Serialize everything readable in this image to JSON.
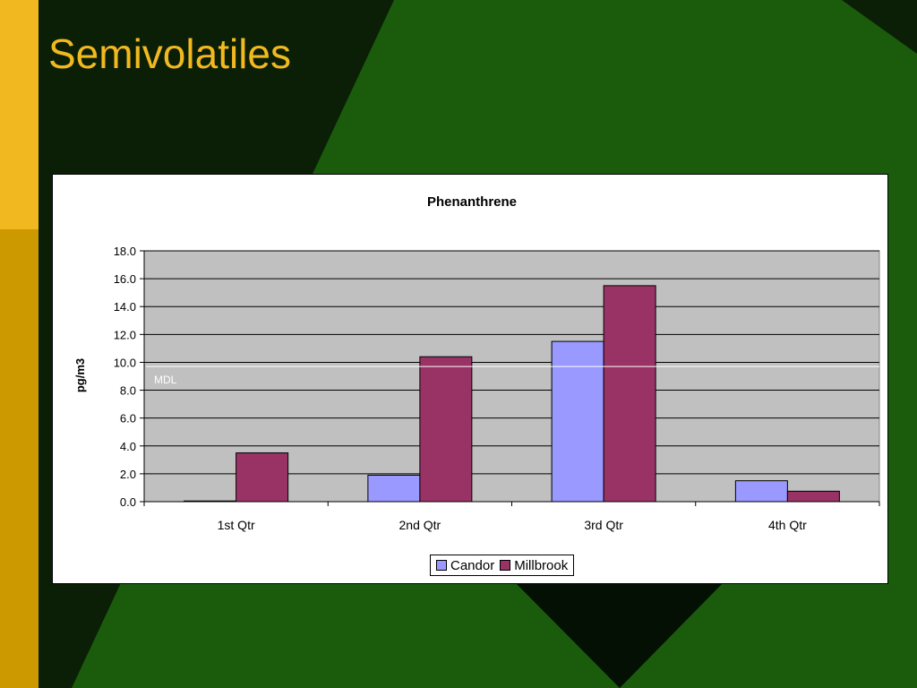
{
  "slide": {
    "title": "Semivolatiles"
  },
  "colors": {
    "background_dark": "#0a1f05",
    "background_green": "#1a5c0c",
    "sidebar_yellow": "#f2b820",
    "sidebar_gold": "#cc9900",
    "title": "#f2b820",
    "plot_area": "#c0c0c0",
    "candor": "#9999ff",
    "millbrook": "#993366",
    "mdl_line": "#ffffff"
  },
  "chart_data": {
    "type": "bar",
    "title": "Phenanthrene",
    "xlabel": "",
    "ylabel": "pg/m3",
    "categories": [
      "1st Qtr",
      "2nd Qtr",
      "3rd Qtr",
      "4th Qtr"
    ],
    "series": [
      {
        "name": "Candor",
        "values": [
          0.05,
          1.9,
          11.5,
          1.5
        ]
      },
      {
        "name": "Millbrook",
        "values": [
          3.5,
          10.4,
          15.5,
          0.75
        ]
      }
    ],
    "ylim": [
      0,
      18
    ],
    "yticks": [
      "0.0",
      "2.0",
      "4.0",
      "6.0",
      "8.0",
      "10.0",
      "12.0",
      "14.0",
      "16.0",
      "18.0"
    ],
    "grid": true,
    "legend_position": "bottom",
    "reference_line": {
      "label": "MDL",
      "value": 9.7
    }
  }
}
